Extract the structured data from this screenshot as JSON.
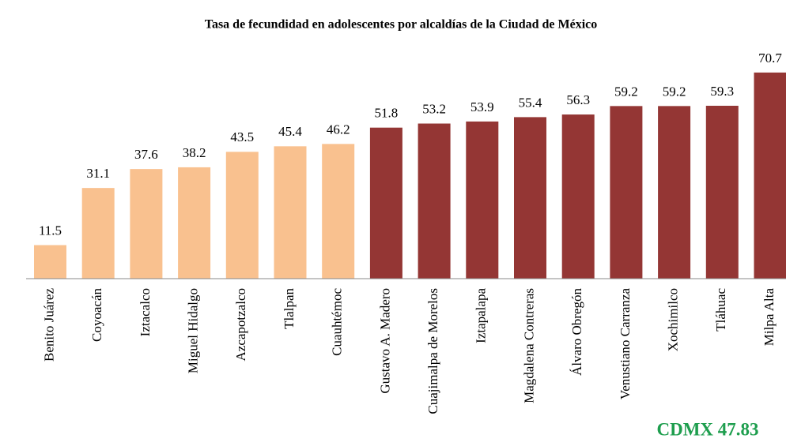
{
  "chart_data": {
    "type": "bar",
    "title": "Tasa de fecundidad en adolescentes por alcaldías de la Ciudad de México",
    "categories": [
      "Benito Juárez",
      "Coyoacán",
      "Iztacalco",
      "Miguel Hidalgo",
      "Azcapotzalco",
      "Tlalpan",
      "Cuauhtémoc",
      "Gustavo A. Madero",
      "Cuajimalpa de Morelos",
      "Iztapalapa",
      "Magdalena Contreras",
      "Álvaro Obregón",
      "Venustiano Carranza",
      "Xochimilco",
      "Tláhuac",
      "Milpa Alta"
    ],
    "values": [
      11.5,
      31.1,
      37.6,
      38.2,
      43.5,
      45.4,
      46.2,
      51.8,
      53.2,
      53.9,
      55.4,
      56.3,
      59.2,
      59.2,
      59.3,
      70.7
    ],
    "colors": [
      "#f9c18f",
      "#f9c18f",
      "#f9c18f",
      "#f9c18f",
      "#f9c18f",
      "#f9c18f",
      "#f9c18f",
      "#943634",
      "#943634",
      "#943634",
      "#943634",
      "#943634",
      "#943634",
      "#943634",
      "#943634",
      "#943634"
    ],
    "ylim": [
      0,
      75
    ],
    "annotation": "CDMX  47.83"
  }
}
